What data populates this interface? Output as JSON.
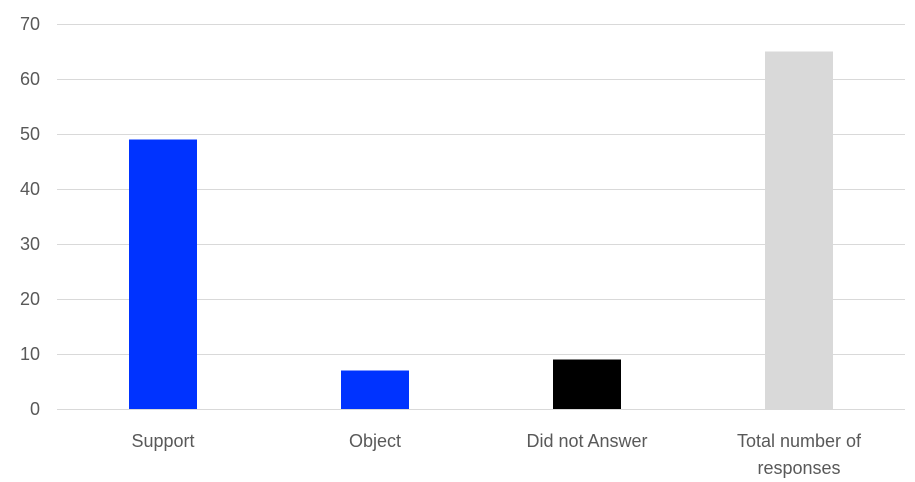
{
  "chart_data": {
    "type": "bar",
    "title": "",
    "xlabel": "",
    "ylabel": "",
    "ylim": [
      0,
      70
    ],
    "yticks": [
      0,
      10,
      20,
      30,
      40,
      50,
      60,
      70
    ],
    "grid": true,
    "legend": "none",
    "categories": [
      [
        "Support"
      ],
      [
        "Object"
      ],
      [
        "Did not Answer"
      ],
      [
        "Total number of",
        "responses"
      ]
    ],
    "values": [
      49,
      7,
      9,
      65
    ],
    "colors": [
      "#0033ff",
      "#0033ff",
      "#000000",
      "#d9d9d9"
    ]
  }
}
